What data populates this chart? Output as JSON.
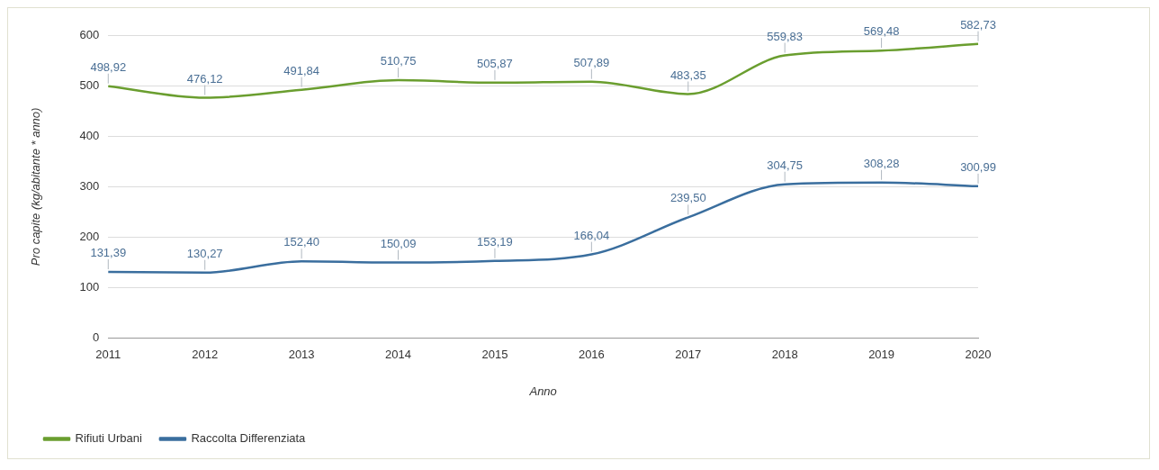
{
  "chart_data": {
    "type": "line",
    "xlabel": "Anno",
    "ylabel": "Pro capite (kg/abitante * anno)",
    "categories": [
      "2011",
      "2012",
      "2013",
      "2014",
      "2015",
      "2016",
      "2017",
      "2018",
      "2019",
      "2020"
    ],
    "series": [
      {
        "name": "Rifiuti Urbani",
        "color": "#6a9e2f",
        "values": [
          498.92,
          476.12,
          491.84,
          510.75,
          505.87,
          507.89,
          483.35,
          559.83,
          569.48,
          582.73
        ],
        "value_labels": [
          "498,92",
          "476,12",
          "491,84",
          "510,75",
          "505,87",
          "507,89",
          "483,35",
          "559,83",
          "569,48",
          "582,73"
        ]
      },
      {
        "name": "Raccolta Differenziata",
        "color": "#3a6e9e",
        "values": [
          131.39,
          130.27,
          152.4,
          150.09,
          153.19,
          166.04,
          239.5,
          304.75,
          308.28,
          300.99
        ],
        "value_labels": [
          "131,39",
          "130,27",
          "152,40",
          "150,09",
          "153,19",
          "166,04",
          "239,50",
          "304,75",
          "308,28",
          "300,99"
        ]
      }
    ],
    "ylim": [
      0,
      600
    ],
    "yticks": [
      0,
      100,
      200,
      300,
      400,
      500,
      600
    ],
    "grid": "y",
    "legend": "bottom left",
    "marker": "none",
    "line_style": "solid"
  }
}
